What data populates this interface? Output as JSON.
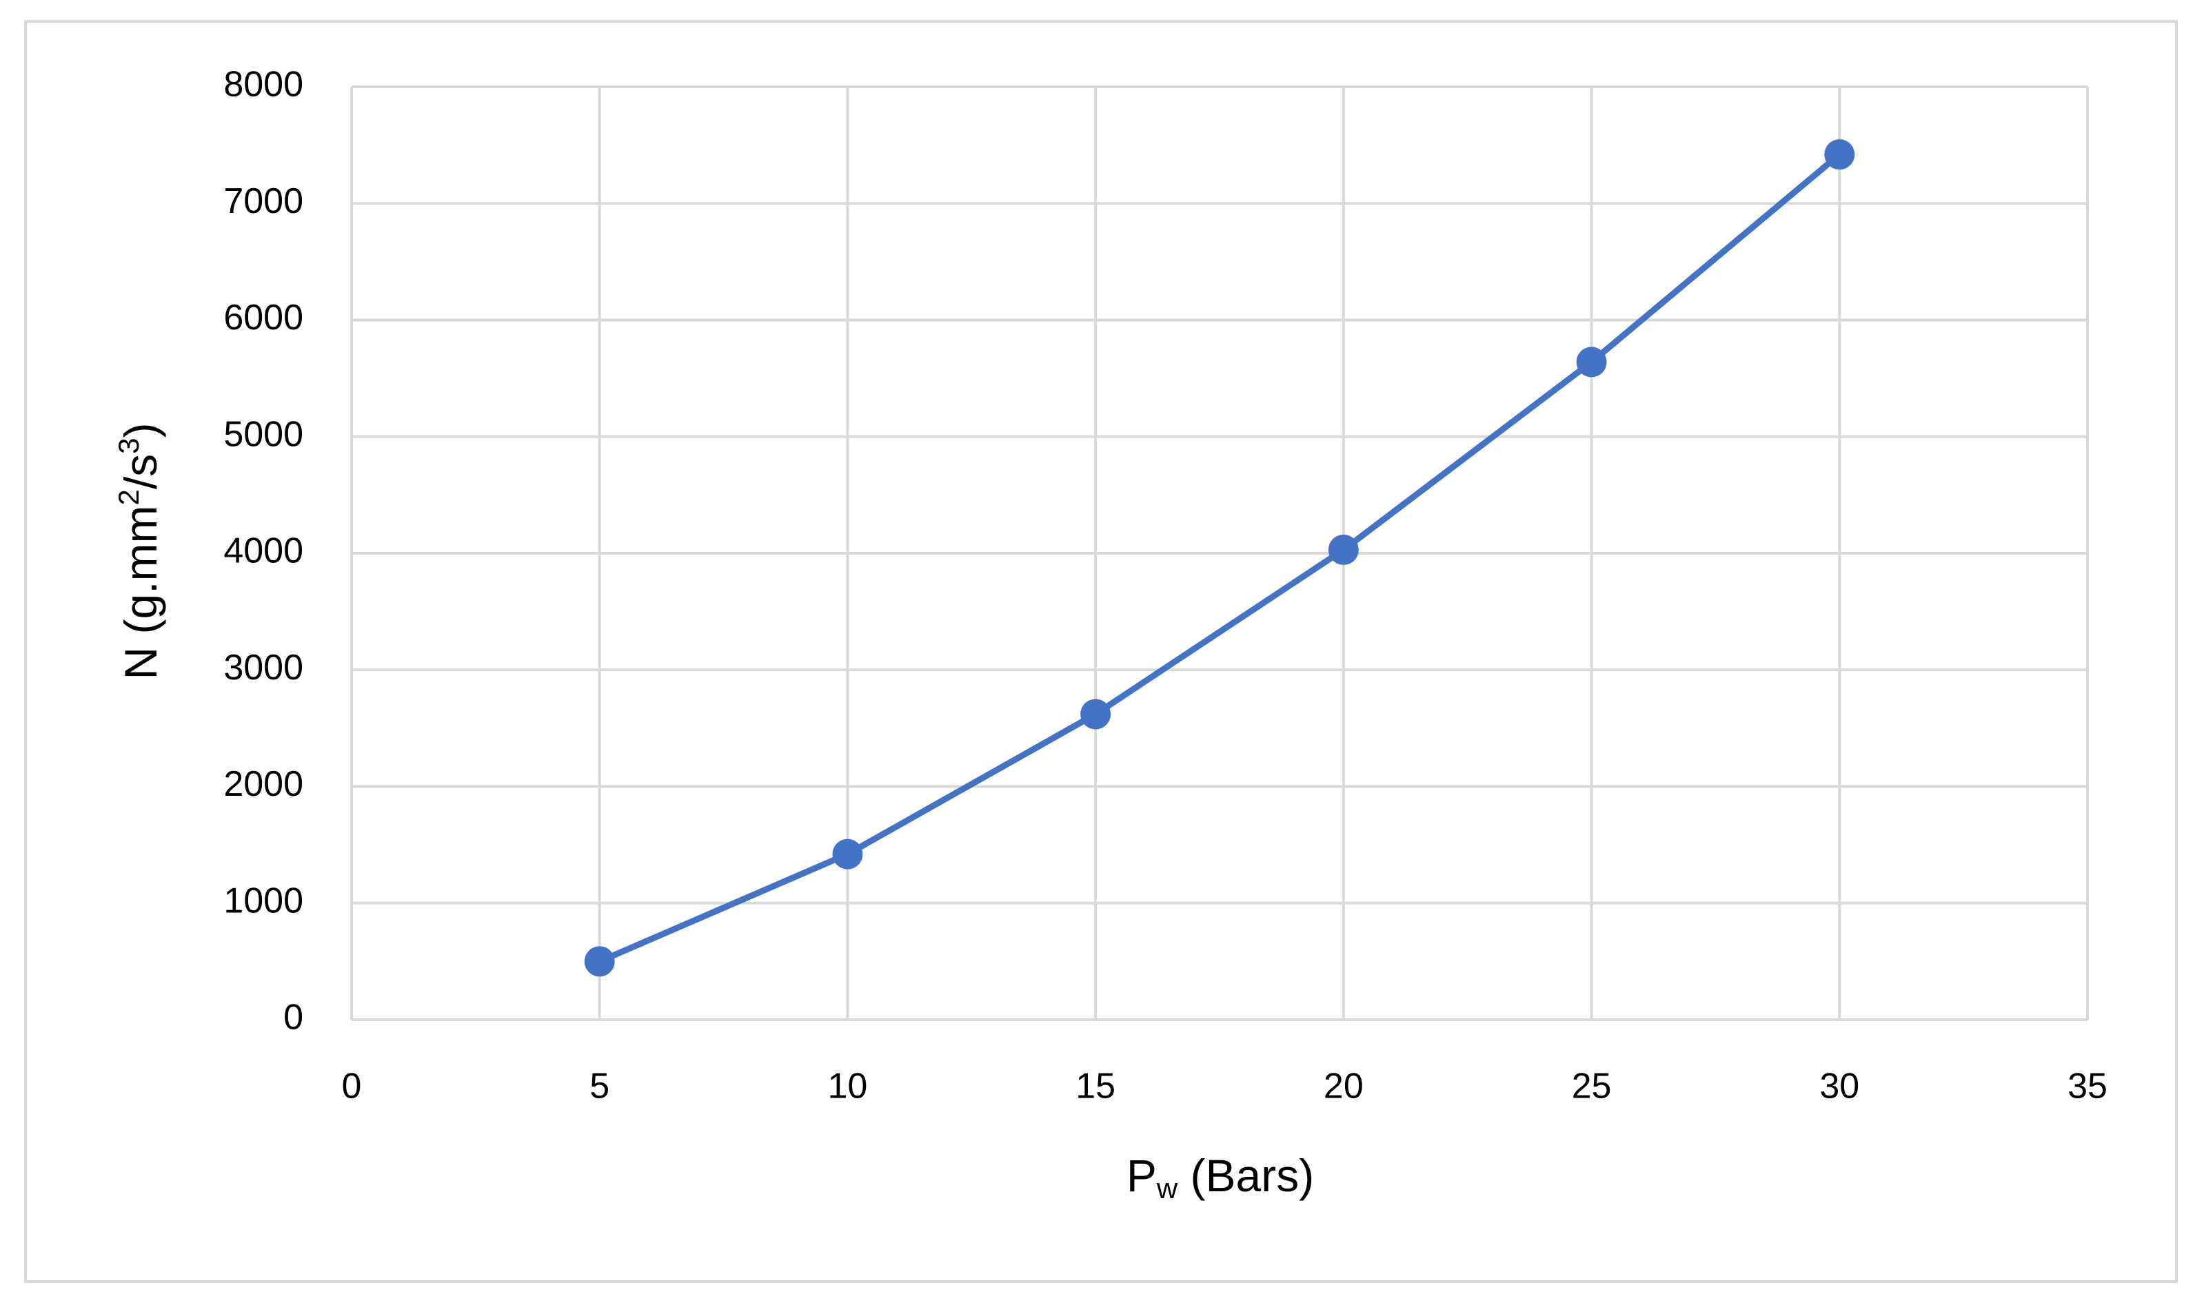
{
  "chart_data": {
    "type": "line",
    "x_label": [
      "P",
      "w",
      " (Bars)"
    ],
    "y_label": [
      "N (g.mm",
      "2",
      "/s",
      "3",
      ")"
    ],
    "x": [
      5,
      10,
      15,
      20,
      25,
      30
    ],
    "values": [
      500,
      1420,
      2620,
      4030,
      5640,
      7420
    ],
    "color": "#4472c4",
    "xlim": [
      0,
      35
    ],
    "xticks": [
      0,
      5,
      10,
      15,
      20,
      25,
      30,
      35
    ],
    "ylim": [
      0,
      8000
    ],
    "yticks": [
      0,
      1000,
      2000,
      3000,
      4000,
      5000,
      6000,
      7000,
      8000
    ],
    "grid": true,
    "markers": true
  }
}
